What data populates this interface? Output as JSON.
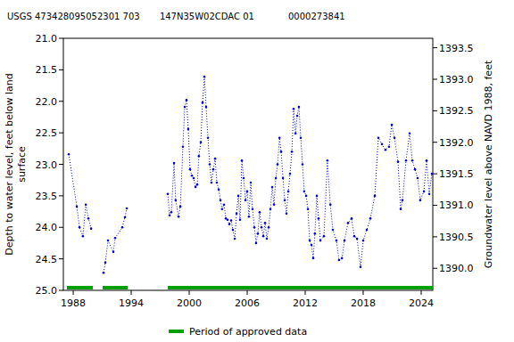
{
  "chart_data": {
    "type": "line",
    "title": "USGS 473428095052301 703       147N35W02CDAC 01            0000273841",
    "y_label": "Depth to water level, feet below land surface",
    "y2_label": "Groundwater level above NAVD 1988, feet",
    "xlim": [
      1986.98,
      2025.2
    ],
    "xticks": [
      1988,
      1994,
      2000,
      2006,
      2012,
      2018,
      2024
    ],
    "ylim": [
      25,
      21
    ],
    "yticks": [
      {
        "value": 21,
        "label": "21.0"
      },
      {
        "value": 21.5,
        "label": "21.5"
      },
      {
        "value": 22,
        "label": "22.0"
      },
      {
        "value": 22.5,
        "label": "22.5"
      },
      {
        "value": 23,
        "label": "23.0"
      },
      {
        "value": 23.5,
        "label": "23.5"
      },
      {
        "value": 24,
        "label": "24.0"
      },
      {
        "value": 24.5,
        "label": "24.5"
      },
      {
        "value": 25,
        "label": "25.0"
      }
    ],
    "y2lim": [
      1389.65,
      1393.65
    ],
    "y2ticks": [
      {
        "value": 1390,
        "label": "1390.0"
      },
      {
        "value": 1390.5,
        "label": "1390.5"
      },
      {
        "value": 1391,
        "label": "1391.0"
      },
      {
        "value": 1391.5,
        "label": "1391.5"
      },
      {
        "value": 1392,
        "label": "1392.0"
      },
      {
        "value": 1392.5,
        "label": "1392.5"
      },
      {
        "value": 1393,
        "label": "1393.0"
      },
      {
        "value": 1393.5,
        "label": "1393.5"
      }
    ],
    "grid": false,
    "x": [
      1987.54,
      1988.37,
      1988.65,
      1989.0,
      1989.3,
      1989.57,
      1989.85,
      null,
      1991.14,
      1991.32,
      1991.6,
      1992.15,
      1992.34,
      1993.08,
      1993.35,
      1993.54,
      null,
      1997.78,
      1997.97,
      1998.15,
      1998.43,
      1998.6,
      1998.9,
      1999.08,
      1999.35,
      1999.54,
      1999.72,
      1999.9,
      2000.09,
      2000.28,
      2000.46,
      2000.65,
      2000.83,
      2001.0,
      2001.2,
      2001.38,
      2001.57,
      2001.75,
      2001.94,
      2002.12,
      2002.3,
      2002.49,
      2002.68,
      2002.86,
      2003.05,
      2003.23,
      2003.4,
      2003.6,
      2003.79,
      2003.97,
      2004.15,
      2004.34,
      2004.52,
      2004.71,
      2004.9,
      2005.08,
      2005.26,
      2005.45,
      2005.63,
      2005.82,
      2006.0,
      2006.18,
      2006.37,
      2006.55,
      2006.74,
      2006.92,
      2007.1,
      2007.29,
      2007.48,
      2007.66,
      2007.85,
      2008.03,
      2008.22,
      2008.4,
      2008.59,
      2008.77,
      2008.96,
      2009.14,
      2009.34,
      2009.51,
      2009.7,
      2009.88,
      2010.06,
      2010.25,
      2010.43,
      2010.62,
      2010.8,
      2011.0,
      2011.17,
      2011.35,
      2011.54,
      2011.72,
      2011.9,
      2012.1,
      2012.28,
      2012.46,
      2012.65,
      2012.83,
      2013.0,
      2013.2,
      2013.38,
      2013.57,
      2013.94,
      2014.3,
      2014.6,
      2014.86,
      2015.23,
      2015.5,
      2015.8,
      2016.06,
      2016.43,
      2016.8,
      2017.08,
      2017.36,
      2017.72,
      2018.0,
      2018.37,
      2018.74,
      2019.2,
      2019.57,
      2019.94,
      2020.3,
      2020.67,
      2020.96,
      2021.23,
      2021.6,
      2021.88,
      2022.06,
      2022.43,
      2022.8,
      2023.08,
      2023.36,
      2023.63,
      2023.9,
      2024.28,
      2024.55,
      2024.83,
      2025.1
    ],
    "series": [
      {
        "color": "#0000cc",
        "marker": "circle",
        "line_style": "dotted",
        "values": [
          22.84,
          23.67,
          24.0,
          24.14,
          23.64,
          23.86,
          24.02,
          null,
          24.72,
          24.56,
          24.21,
          24.39,
          24.17,
          24.0,
          23.84,
          23.7,
          null,
          23.47,
          23.81,
          23.76,
          22.98,
          23.57,
          23.83,
          23.67,
          22.72,
          22.09,
          21.98,
          22.44,
          23.08,
          23.18,
          23.22,
          23.36,
          23.32,
          22.87,
          22.65,
          22.02,
          21.61,
          22.09,
          22.58,
          23.0,
          23.29,
          23.08,
          22.91,
          23.29,
          23.4,
          23.57,
          23.71,
          23.64,
          23.86,
          23.88,
          23.95,
          23.89,
          24.04,
          24.18,
          23.78,
          23.5,
          23.88,
          22.94,
          23.22,
          23.57,
          23.43,
          23.83,
          23.29,
          23.71,
          24.0,
          24.25,
          24.1,
          23.76,
          24.0,
          24.14,
          23.93,
          24.18,
          24.0,
          23.71,
          23.36,
          23.64,
          23.22,
          23.0,
          22.58,
          22.8,
          23.22,
          23.57,
          23.78,
          23.43,
          23.15,
          22.8,
          22.12,
          22.51,
          22.23,
          22.09,
          22.58,
          23.0,
          23.43,
          23.5,
          23.71,
          24.21,
          24.28,
          24.49,
          24.1,
          23.5,
          23.86,
          24.21,
          24.14,
          22.94,
          23.64,
          24.04,
          24.21,
          24.52,
          24.49,
          24.21,
          23.93,
          23.86,
          24.14,
          24.18,
          24.63,
          24.21,
          24.04,
          23.86,
          23.5,
          22.58,
          22.68,
          22.77,
          22.72,
          22.37,
          22.58,
          22.96,
          23.71,
          23.57,
          22.94,
          22.51,
          22.94,
          23.08,
          23.22,
          23.57,
          23.43,
          22.94,
          23.47,
          23.15
        ]
      }
    ],
    "approved_data": {
      "name": "Period of approved data",
      "color": "#00a000",
      "periods": [
        [
          1987.35,
          1990.03
        ],
        [
          1991.05,
          1993.63
        ],
        [
          1997.79,
          2025.2
        ]
      ]
    }
  }
}
